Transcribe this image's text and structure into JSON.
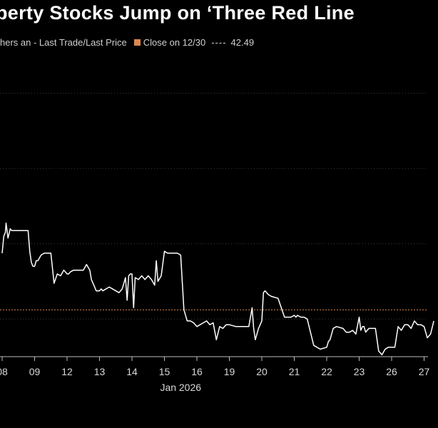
{
  "header": {
    "title": "perty Stocks Jump on ‘Three Red Line"
  },
  "legend": {
    "series_label": "hers an - Last Trade/Last Price",
    "close_label": "Close on 12/30",
    "close_dash": "----",
    "close_value": "42.49"
  },
  "colors": {
    "background": "#000000",
    "line": "#ffffff",
    "reference": "#d9894f",
    "grid": "#3a3a3a"
  },
  "chart_data": {
    "type": "line",
    "title": "perty Stocks Jump on ‘Three Red Line",
    "xlabel": "Jan 2026",
    "ylabel": "",
    "x_tick_labels": [
      "08",
      "09",
      "12",
      "13",
      "14",
      "15",
      "16",
      "19",
      "20",
      "21",
      "22",
      "23",
      "26",
      "27"
    ],
    "month_label": "Jan 2026",
    "reference_line": {
      "label": "Close on 12/30",
      "value": 42.49
    },
    "ylim": [
      40.0,
      56.0
    ],
    "x_range": [
      0,
      13.3
    ],
    "series": [
      {
        "name": "hers an - Last Trade/Last Price",
        "x": [
          0,
          0.05,
          0.1,
          0.12,
          0.18,
          0.25,
          0.3,
          0.4,
          0.55,
          0.7,
          0.8,
          0.85,
          0.9,
          0.95,
          1.0,
          1.05,
          1.1,
          1.2,
          1.3,
          1.45,
          1.5,
          1.6,
          1.7,
          1.8,
          1.9,
          2.0,
          2.05,
          2.1,
          2.2,
          2.3,
          2.4,
          2.5,
          2.6,
          2.7,
          2.75,
          2.8,
          2.85,
          2.9,
          3.0,
          3.05,
          3.1,
          3.2,
          3.3,
          3.5,
          3.6,
          3.7,
          3.8,
          3.85,
          3.9,
          3.95,
          4.0,
          4.05,
          4.1,
          4.2,
          4.3,
          4.4,
          4.5,
          4.6,
          4.7,
          4.75,
          4.8,
          4.9,
          5.0,
          5.1,
          5.2,
          5.3,
          5.4,
          5.5,
          5.6,
          5.7,
          5.8,
          5.9,
          6.0,
          6.2,
          6.3,
          6.4,
          6.5,
          6.6,
          6.7,
          6.8,
          6.9,
          7.0,
          7.2,
          7.4,
          7.6,
          7.7,
          7.75,
          7.8,
          7.9,
          8.0,
          8.05,
          8.1,
          8.2,
          8.3,
          8.5,
          8.7,
          8.9,
          9.0,
          9.05,
          9.1,
          9.2,
          9.3,
          9.4,
          9.6,
          9.8,
          10.0,
          10.05,
          10.1,
          10.2,
          10.3,
          10.5,
          10.6,
          10.7,
          10.8,
          10.9,
          11.0,
          11.05,
          11.1,
          11.15,
          11.2,
          11.3,
          11.4,
          11.5,
          11.6,
          11.7,
          11.8,
          11.9,
          12.0,
          12.1,
          12.2,
          12.3,
          12.4,
          12.5,
          12.6,
          12.7,
          12.8,
          12.9,
          13.0,
          13.1,
          13.2,
          13.3
        ],
        "values": [
          45.5,
          46.4,
          46.6,
          47.1,
          46.3,
          46.8,
          46.7,
          46.7,
          46.7,
          46.7,
          46.7,
          45.6,
          45.0,
          44.8,
          44.8,
          45.1,
          45.1,
          45.4,
          45.5,
          45.5,
          45.5,
          43.9,
          44.4,
          44.3,
          44.6,
          44.4,
          44.4,
          44.5,
          44.6,
          44.6,
          44.6,
          44.6,
          44.9,
          44.6,
          44.1,
          43.9,
          43.7,
          43.5,
          43.5,
          43.6,
          43.5,
          43.6,
          43.7,
          43.5,
          43.4,
          43.6,
          44.2,
          43.0,
          44.3,
          44.4,
          44.4,
          42.6,
          44.2,
          44.1,
          44.3,
          44.1,
          44.3,
          44.1,
          43.8,
          45.1,
          44.0,
          44.3,
          45.6,
          45.5,
          45.5,
          45.5,
          45.5,
          45.4,
          42.5,
          41.9,
          41.9,
          41.8,
          41.6,
          41.8,
          41.9,
          41.7,
          41.8,
          40.9,
          41.6,
          41.5,
          41.7,
          41.7,
          41.6,
          41.6,
          41.6,
          42.6,
          41.5,
          40.9,
          41.5,
          41.9,
          43.4,
          43.5,
          43.3,
          43.2,
          43.1,
          42.1,
          42.1,
          42.2,
          42.1,
          42.2,
          42.1,
          42.1,
          42.0,
          40.6,
          40.4,
          40.5,
          40.8,
          40.9,
          41.5,
          41.6,
          41.5,
          41.3,
          41.3,
          41.4,
          41.2,
          42.1,
          41.4,
          41.6,
          41.6,
          41.3,
          41.5,
          41.5,
          41.5,
          40.3,
          40.1,
          40.4,
          40.5,
          40.5,
          40.5,
          41.6,
          41.4,
          41.7,
          41.7,
          41.5,
          41.9,
          41.7,
          41.7,
          41.6,
          41.0,
          41.2,
          41.9
        ]
      }
    ],
    "grid": true,
    "gridlines_y": [
      42.0,
      46.0,
      50.0,
      54.0
    ]
  }
}
